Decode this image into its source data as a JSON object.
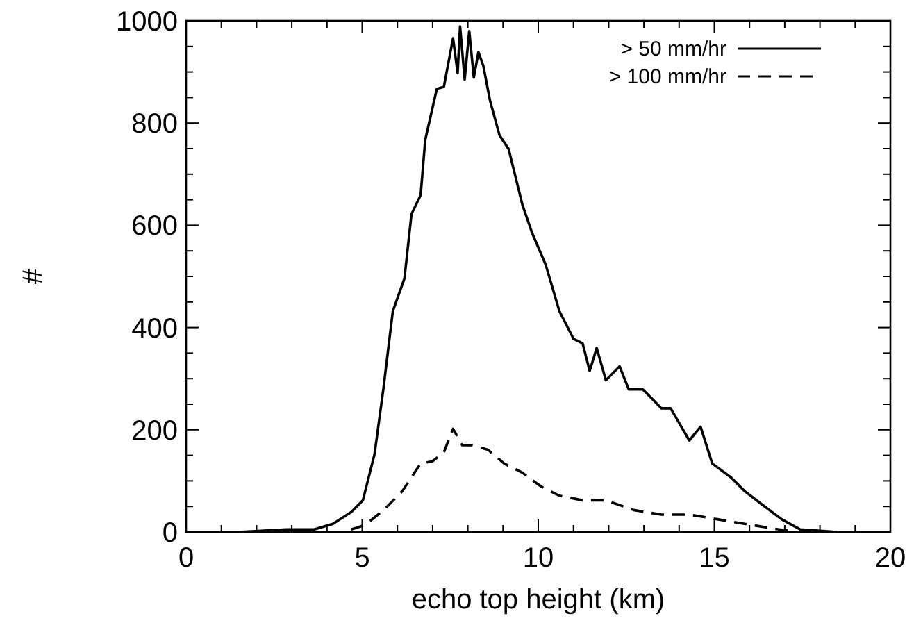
{
  "chart_data": {
    "type": "line",
    "xlabel": "echo top height (km)",
    "ylabel": "#",
    "xlim": [
      0,
      20
    ],
    "ylim": [
      0,
      1000
    ],
    "xticks": [
      0,
      {
        "value": 1,
        "label": null
      },
      {
        "value": 2,
        "label": null
      },
      {
        "value": 3,
        "label": null
      },
      {
        "value": 4,
        "label": null
      },
      5,
      {
        "value": 6,
        "label": null
      },
      {
        "value": 7,
        "label": null
      },
      {
        "value": 8,
        "label": null
      },
      {
        "value": 9,
        "label": null
      },
      10,
      {
        "value": 11,
        "label": null
      },
      {
        "value": 12,
        "label": null
      },
      {
        "value": 13,
        "label": null
      },
      {
        "value": 14,
        "label": null
      },
      15,
      {
        "value": 16,
        "label": null
      },
      {
        "value": 17,
        "label": null
      },
      {
        "value": 18,
        "label": null
      },
      {
        "value": 19,
        "label": null
      },
      20
    ],
    "yticks": [
      0,
      {
        "value": 50,
        "label": null
      },
      {
        "value": 100,
        "label": null
      },
      {
        "value": 150,
        "label": null
      },
      200,
      {
        "value": 250,
        "label": null
      },
      {
        "value": 300,
        "label": null
      },
      {
        "value": 350,
        "label": null
      },
      400,
      {
        "value": 450,
        "label": null
      },
      {
        "value": 500,
        "label": null
      },
      {
        "value": 550,
        "label": null
      },
      600,
      {
        "value": 650,
        "label": null
      },
      {
        "value": 700,
        "label": null
      },
      {
        "value": 750,
        "label": null
      },
      800,
      {
        "value": 850,
        "label": null
      },
      {
        "value": 900,
        "label": null
      },
      {
        "value": 950,
        "label": null
      },
      1000
    ],
    "legend": "top right",
    "grid": false,
    "series": [
      {
        "name": "> 50 mm/hr",
        "color": "#000000",
        "line_style": "solid",
        "x": [
          1.5,
          2.85,
          3.64,
          4.17,
          4.69,
          5.02,
          5.35,
          5.6,
          5.87,
          6.2,
          6.4,
          6.66,
          6.79,
          7.12,
          7.32,
          7.58,
          7.71,
          7.78,
          7.91,
          8.04,
          8.17,
          8.3,
          8.44,
          8.63,
          8.9,
          9.16,
          9.55,
          9.82,
          10.21,
          10.6,
          11.0,
          11.26,
          11.46,
          11.66,
          11.92,
          12.31,
          12.57,
          12.97,
          13.23,
          13.5,
          13.76,
          14.29,
          14.61,
          14.94,
          15.47,
          15.86,
          16.39,
          16.91,
          17.44,
          18.49
        ],
        "values": [
          0,
          5,
          5,
          16,
          39,
          62,
          152,
          279,
          432,
          496,
          622,
          659,
          767,
          867,
          871,
          966,
          898,
          989,
          885,
          980,
          889,
          939,
          912,
          844,
          776,
          749,
          640,
          586,
          523,
          432,
          378,
          369,
          315,
          360,
          297,
          324,
          279,
          279,
          261,
          242,
          242,
          179,
          206,
          134,
          107,
          80,
          52,
          25,
          5,
          0
        ]
      },
      {
        "name": "> 100 mm/hr",
        "color": "#000000",
        "line_style": "dashed",
        "x": [
          4.69,
          5.09,
          5.61,
          6.14,
          6.66,
          6.99,
          7.32,
          7.58,
          7.84,
          8.11,
          8.57,
          9.03,
          9.55,
          10.08,
          10.6,
          11.26,
          11.92,
          12.71,
          13.5,
          14.29,
          15.08,
          15.86,
          16.65,
          17.17
        ],
        "values": [
          5,
          14,
          43,
          80,
          134,
          138,
          156,
          202,
          170,
          170,
          161,
          134,
          116,
          89,
          71,
          62,
          62,
          43,
          34,
          34,
          25,
          16,
          7,
          2
        ]
      }
    ]
  }
}
